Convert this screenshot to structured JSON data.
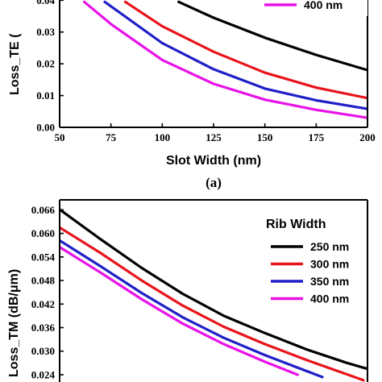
{
  "chart_data": [
    {
      "type": "line",
      "panel_label": "(a)",
      "xlabel": "Slot Width (nm)",
      "ylabel": "Loss_TE (",
      "xlim": [
        50,
        200
      ],
      "ylim": [
        0.0,
        0.045
      ],
      "x_ticks": [
        "50",
        "75",
        "100",
        "125",
        "150",
        "175",
        "200"
      ],
      "y_ticks": [
        "0.00",
        "0.01",
        "0.02",
        "0.03",
        "0.04"
      ],
      "legend_visible_entries": [
        "400 nm"
      ],
      "series": [
        {
          "name": "250 nm",
          "color": "#000000",
          "x": [
            108,
            125,
            150,
            175,
            200
          ],
          "y": [
            0.0395,
            0.0345,
            0.0282,
            0.0228,
            0.018
          ]
        },
        {
          "name": "300 nm",
          "color": "#e8141b",
          "x": [
            82,
            100,
            125,
            150,
            175,
            200
          ],
          "y": [
            0.0395,
            0.0318,
            0.0238,
            0.0172,
            0.0125,
            0.0092
          ]
        },
        {
          "name": "350 nm",
          "color": "#1f1fc8",
          "x": [
            72,
            100,
            125,
            150,
            175,
            200
          ],
          "y": [
            0.0395,
            0.0265,
            0.0183,
            0.0122,
            0.0085,
            0.0058
          ]
        },
        {
          "name": "400 nm",
          "color": "#e812e8",
          "x": [
            62,
            75,
            100,
            125,
            150,
            175,
            200
          ],
          "y": [
            0.0395,
            0.0325,
            0.0212,
            0.0137,
            0.0087,
            0.0055,
            0.003
          ]
        }
      ]
    },
    {
      "type": "line",
      "xlabel": "",
      "ylabel": "Loss_TM (dB/μm)",
      "xlim": [
        50,
        200
      ],
      "ylim": [
        0.022,
        0.067
      ],
      "y_ticks": [
        "0.024",
        "0.030",
        "0.036",
        "0.042",
        "0.048",
        "0.054",
        "0.060",
        "0.066"
      ],
      "legend_title": "Rib Width",
      "legend_position": "top-right",
      "series": [
        {
          "name": "250 nm",
          "color": "#000000",
          "x": [
            50,
            70,
            90,
            110,
            130,
            150,
            170,
            190,
            200
          ],
          "y": [
            0.0661,
            0.0585,
            0.0512,
            0.0446,
            0.039,
            0.0346,
            0.0305,
            0.027,
            0.0255
          ]
        },
        {
          "name": "300 nm",
          "color": "#e8141b",
          "x": [
            50,
            70,
            90,
            110,
            130,
            150,
            170,
            190,
            198
          ],
          "y": [
            0.0615,
            0.055,
            0.048,
            0.0416,
            0.0362,
            0.0318,
            0.0278,
            0.0241,
            0.0226
          ]
        },
        {
          "name": "350 nm",
          "color": "#1f1fc8",
          "x": [
            50,
            70,
            90,
            110,
            130,
            150,
            170,
            178
          ],
          "y": [
            0.0582,
            0.0516,
            0.0448,
            0.0386,
            0.0334,
            0.029,
            0.025,
            0.0234
          ]
        },
        {
          "name": "400 nm",
          "color": "#e812e8",
          "x": [
            50,
            70,
            90,
            110,
            130,
            150,
            166
          ],
          "y": [
            0.0565,
            0.05,
            0.0432,
            0.037,
            0.0318,
            0.0273,
            0.024
          ]
        }
      ]
    }
  ]
}
